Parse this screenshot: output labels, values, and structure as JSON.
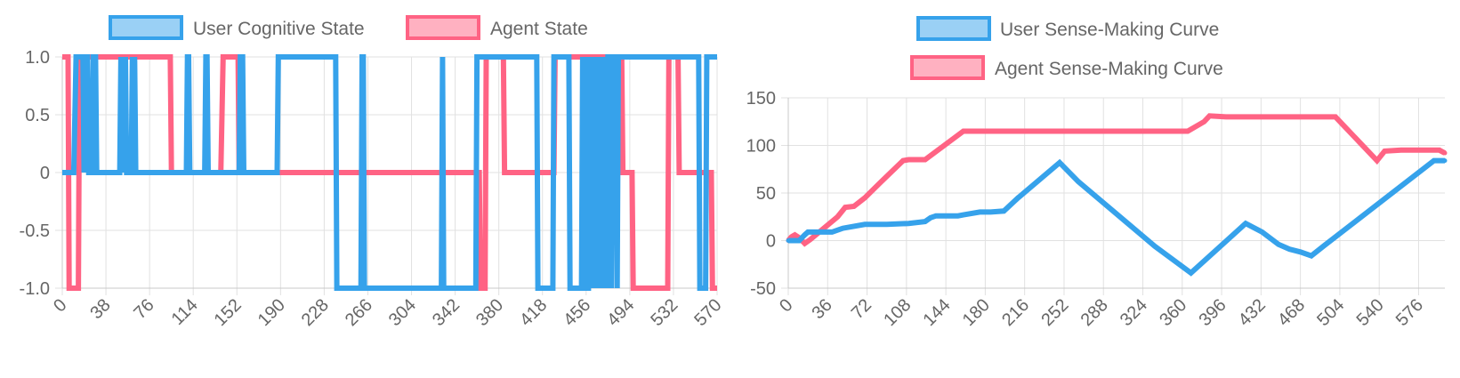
{
  "colors": {
    "blue": "#36a2eb",
    "blue_fill": "#9ad0f5",
    "red": "#ff6384",
    "red_fill": "#ffb1c1"
  },
  "chart_data": [
    {
      "type": "line",
      "step": true,
      "legend_position": "top",
      "series": [
        {
          "name": "User Cognitive State",
          "color": "#36a2eb",
          "points": [
            [
              0,
              0
            ],
            [
              10,
              0
            ],
            [
              12,
              1
            ],
            [
              18,
              1
            ],
            [
              19,
              0
            ],
            [
              20,
              1
            ],
            [
              22,
              1
            ],
            [
              23,
              0
            ],
            [
              26,
              0
            ],
            [
              27,
              1
            ],
            [
              29,
              1
            ],
            [
              30,
              0
            ],
            [
              50,
              0
            ],
            [
              51,
              1
            ],
            [
              52,
              0
            ],
            [
              53,
              1
            ],
            [
              54,
              0
            ],
            [
              55,
              1
            ],
            [
              56,
              0
            ],
            [
              60,
              0
            ],
            [
              61,
              1
            ],
            [
              62,
              0
            ],
            [
              63,
              1
            ],
            [
              64,
              0
            ],
            [
              108,
              0
            ],
            [
              109,
              1
            ],
            [
              110,
              1
            ],
            [
              111,
              0
            ],
            [
              124,
              0
            ],
            [
              125,
              1
            ],
            [
              126,
              1
            ],
            [
              127,
              0
            ],
            [
              154,
              0
            ],
            [
              155,
              1
            ],
            [
              157,
              1
            ],
            [
              158,
              0
            ],
            [
              187,
              0
            ],
            [
              188,
              1
            ],
            [
              238,
              1
            ],
            [
              239,
              -1
            ],
            [
              260,
              -1
            ],
            [
              261,
              1
            ],
            [
              262,
              1
            ],
            [
              263,
              -1
            ],
            [
              330,
              -1
            ],
            [
              331,
              1
            ],
            [
              332,
              -1
            ],
            [
              360,
              -1
            ],
            [
              361,
              1
            ],
            [
              413,
              1
            ],
            [
              414,
              -1
            ],
            [
              427,
              -1
            ],
            [
              428,
              1
            ],
            [
              441,
              1
            ],
            [
              442,
              -1
            ],
            [
              452,
              -1
            ],
            [
              453,
              1
            ],
            [
              454,
              -1
            ],
            [
              455,
              1
            ],
            [
              456,
              -1
            ],
            [
              458,
              -1
            ],
            [
              459,
              1
            ],
            [
              460,
              -1
            ],
            [
              461,
              1
            ],
            [
              462,
              -1
            ],
            [
              463,
              1
            ],
            [
              464,
              -1
            ],
            [
              465,
              1
            ],
            [
              466,
              -1
            ],
            [
              467,
              1
            ],
            [
              468,
              -1
            ],
            [
              469,
              1
            ],
            [
              470,
              -1
            ],
            [
              471,
              1
            ],
            [
              472,
              -1
            ],
            [
              473,
              1
            ],
            [
              474,
              -1
            ],
            [
              475,
              1
            ],
            [
              477,
              1
            ],
            [
              478,
              -1
            ],
            [
              479,
              1
            ],
            [
              482,
              1
            ],
            [
              483,
              -1
            ],
            [
              484,
              1
            ],
            [
              554,
              1
            ],
            [
              555,
              -1
            ],
            [
              560,
              -1
            ],
            [
              561,
              1
            ],
            [
              570,
              1
            ]
          ]
        },
        {
          "name": "Agent State",
          "color": "#ff6384",
          "points": [
            [
              0,
              1
            ],
            [
              5,
              1
            ],
            [
              6,
              -1
            ],
            [
              14,
              -1
            ],
            [
              15,
              1
            ],
            [
              94,
              1
            ],
            [
              95,
              0
            ],
            [
              138,
              0
            ],
            [
              140,
              1
            ],
            [
              153,
              1
            ],
            [
              154,
              0
            ],
            [
              363,
              0
            ],
            [
              364,
              -1
            ],
            [
              368,
              -1
            ],
            [
              369,
              1
            ],
            [
              384,
              1
            ],
            [
              385,
              0
            ],
            [
              428,
              0
            ],
            [
              429,
              1
            ],
            [
              487,
              1
            ],
            [
              488,
              0
            ],
            [
              496,
              0
            ],
            [
              497,
              -1
            ],
            [
              527,
              -1
            ],
            [
              528,
              1
            ],
            [
              536,
              1
            ],
            [
              537,
              0
            ],
            [
              565,
              0
            ],
            [
              566,
              -1
            ],
            [
              570,
              -1
            ]
          ]
        }
      ],
      "xlabel": "",
      "ylabel": "",
      "xlim": [
        0,
        570
      ],
      "ylim": [
        -1,
        1
      ],
      "x_ticks": [
        "0",
        "38",
        "76",
        "114",
        "152",
        "190",
        "228",
        "266",
        "304",
        "342",
        "380",
        "418",
        "456",
        "494",
        "532",
        "570"
      ],
      "y_ticks": [
        "1.0",
        "0.5",
        "0",
        "-0.5",
        "-1.0"
      ]
    },
    {
      "type": "line",
      "legend_position": "top",
      "series": [
        {
          "name": "User Sense-Making Curve",
          "color": "#36a2eb",
          "points": [
            [
              0,
              0
            ],
            [
              10,
              0
            ],
            [
              15,
              6
            ],
            [
              18,
              9
            ],
            [
              25,
              9
            ],
            [
              40,
              9
            ],
            [
              50,
              13
            ],
            [
              60,
              15
            ],
            [
              70,
              17
            ],
            [
              90,
              17
            ],
            [
              110,
              18
            ],
            [
              125,
              20
            ],
            [
              130,
              24
            ],
            [
              135,
              26
            ],
            [
              155,
              26
            ],
            [
              160,
              27
            ],
            [
              175,
              30
            ],
            [
              185,
              30
            ],
            [
              197,
              31
            ],
            [
              210,
              45
            ],
            [
              248,
              82
            ],
            [
              265,
              62
            ],
            [
              335,
              -6
            ],
            [
              368,
              -34
            ],
            [
              418,
              18
            ],
            [
              433,
              9
            ],
            [
              448,
              -4
            ],
            [
              458,
              -9
            ],
            [
              468,
              -12
            ],
            [
              478,
              -16
            ],
            [
              490,
              -5
            ],
            [
              590,
              84
            ],
            [
              600,
              84
            ]
          ]
        },
        {
          "name": "Agent Sense-Making Curve",
          "color": "#ff6384",
          "points": [
            [
              0,
              0
            ],
            [
              3,
              4
            ],
            [
              6,
              6
            ],
            [
              10,
              3
            ],
            [
              15,
              -3
            ],
            [
              20,
              1
            ],
            [
              45,
              25
            ],
            [
              52,
              35
            ],
            [
              60,
              36
            ],
            [
              70,
              45
            ],
            [
              85,
              62
            ],
            [
              105,
              84
            ],
            [
              110,
              85
            ],
            [
              125,
              85
            ],
            [
              160,
              115
            ],
            [
              320,
              115
            ],
            [
              365,
              115
            ],
            [
              380,
              125
            ],
            [
              385,
              131
            ],
            [
              400,
              130
            ],
            [
              500,
              130
            ],
            [
              538,
              84
            ],
            [
              545,
              94
            ],
            [
              560,
              95
            ],
            [
              595,
              95
            ],
            [
              600,
              92
            ]
          ]
        }
      ],
      "xlabel": "",
      "ylabel": "",
      "xlim": [
        0,
        600
      ],
      "ylim": [
        -50,
        150
      ],
      "x_ticks": [
        "0",
        "36",
        "72",
        "108",
        "144",
        "180",
        "216",
        "252",
        "288",
        "324",
        "360",
        "396",
        "432",
        "468",
        "504",
        "540",
        "576"
      ],
      "y_ticks": [
        "150",
        "100",
        "50",
        "0",
        "-50"
      ]
    }
  ]
}
